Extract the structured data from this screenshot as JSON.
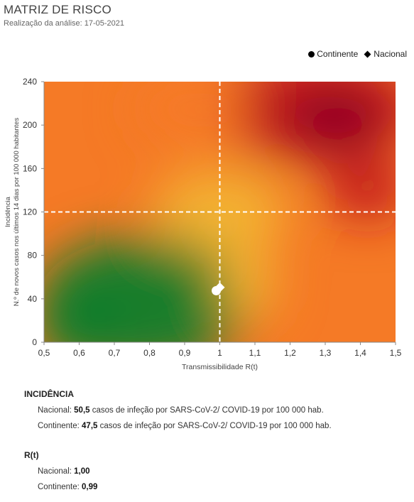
{
  "header": {
    "title": "MATRIZ DE RISCO",
    "subtitle": "Realização da análise: 17-05-2021"
  },
  "legend": {
    "continente": "Continente",
    "nacional": "Nacional"
  },
  "colors": {
    "green": "#0a7d2c",
    "yellow": "#f2b533",
    "orange": "#f57a26",
    "red": "#c0161f",
    "darkred": "#8c0025"
  },
  "chart_data": {
    "type": "scatter",
    "title": "MATRIZ DE RISCO",
    "xlabel": "Transmissibilidade R(t)",
    "ylabel_line1": "Incidência",
    "ylabel_line2": "N.º de novos casos nos últimos 14 dias por 100 000 habitantes",
    "xlim": [
      0.5,
      1.5
    ],
    "ylim": [
      0,
      240
    ],
    "xticks": [
      "0,5",
      "0,6",
      "0,7",
      "0,8",
      "0,9",
      "1",
      "1,1",
      "1,2",
      "1,3",
      "1,4",
      "1,5"
    ],
    "yticks": [
      "0",
      "40",
      "80",
      "120",
      "160",
      "200",
      "240"
    ],
    "thresholds": {
      "x": 1,
      "y": 120
    },
    "legend_position": "top-right",
    "series": [
      {
        "name": "Continente",
        "marker": "circle",
        "x": 0.99,
        "y": 47.5
      },
      {
        "name": "Nacional",
        "marker": "diamond",
        "x": 1.0,
        "y": 50.5
      }
    ]
  },
  "incidencia": {
    "heading": "INCIDÊNCIA",
    "nacional_label": "Nacional:",
    "nacional_value": "50,5",
    "nacional_text": "casos de infeção por SARS-CoV-2/ COVID-19 por 100 000 hab.",
    "continente_label": "Continente:",
    "continente_value": "47,5",
    "continente_text": "casos de infeção por SARS-CoV-2/ COVID-19 por 100 000 hab."
  },
  "rt": {
    "heading": "R(t)",
    "nacional_label": "Nacional:",
    "nacional_value": "1,00",
    "continente_label": "Continente:",
    "continente_value": "0,99"
  }
}
